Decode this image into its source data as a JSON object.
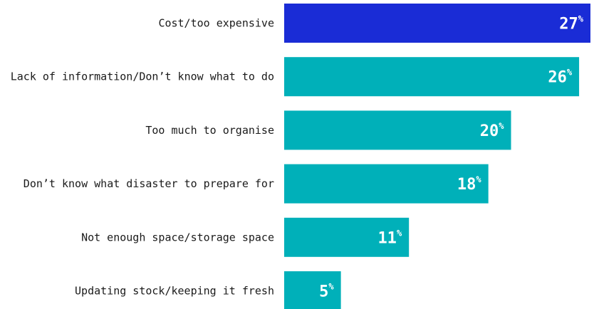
{
  "chart_data": {
    "type": "bar",
    "orientation": "horizontal",
    "categories": [
      "Cost/too expensive",
      "Lack of information/Don’t know what to do",
      "Too much to organise",
      "Don’t know what disaster to prepare for",
      "Not enough space/storage space",
      "Updating stock/keeping it fresh"
    ],
    "values": [
      27,
      26,
      20,
      18,
      11,
      5
    ],
    "value_suffix": "%",
    "highlight_index": 0,
    "colors": {
      "highlight": "#1a2cd6",
      "default": "#00b0b9"
    },
    "xlim": [
      0,
      27
    ],
    "grid": false,
    "legend": "none"
  }
}
